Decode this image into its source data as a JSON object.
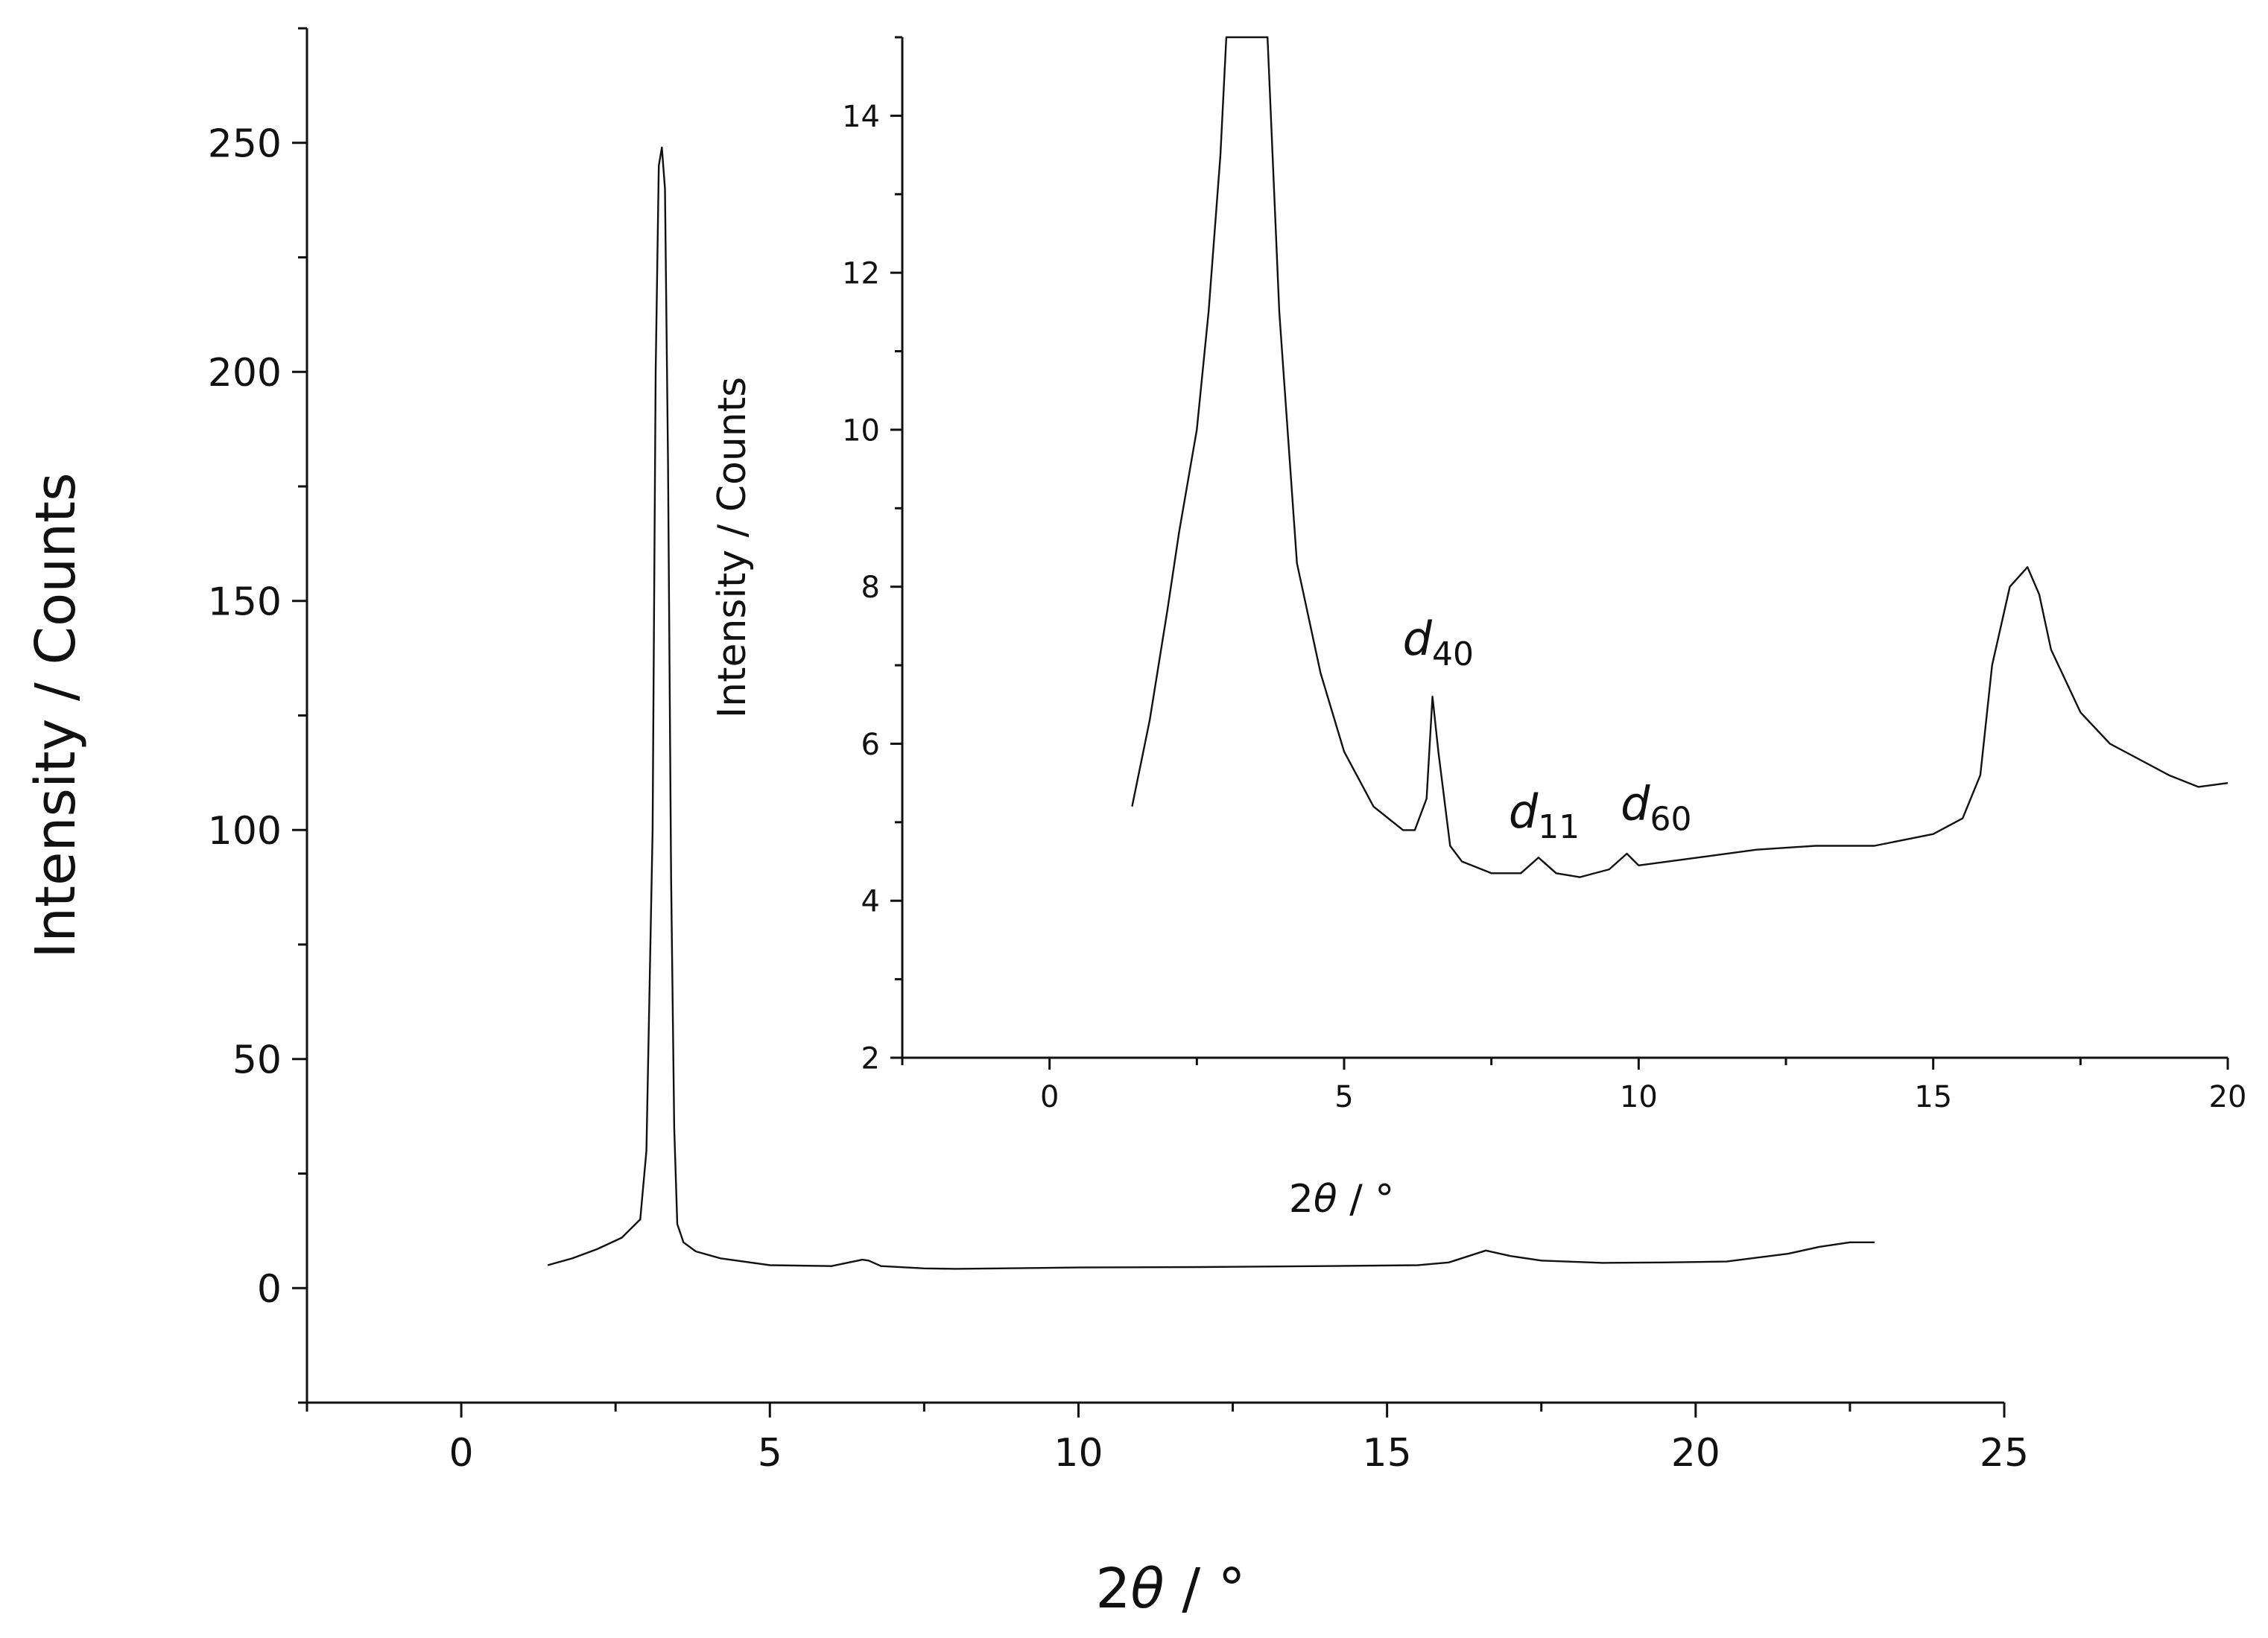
{
  "chart_data": [
    {
      "type": "line",
      "xlabel": "2θ / °",
      "ylabel": "Intensity / Counts",
      "xlim": [
        -2.5,
        25
      ],
      "ylim": [
        -25,
        275
      ],
      "xticks": [
        0,
        5,
        10,
        15,
        20,
        25
      ],
      "yticks": [
        0,
        50,
        100,
        150,
        200,
        250
      ],
      "xtick_labels": [
        "0",
        "5",
        "10",
        "15",
        "20",
        "25"
      ],
      "ytick_labels": [
        "0",
        "50",
        "100",
        "150",
        "200",
        "250"
      ],
      "grid": false,
      "series": [
        {
          "x": [
            1.4,
            1.8,
            2.2,
            2.6,
            2.9,
            3.0,
            3.1,
            3.15,
            3.2,
            3.25,
            3.3,
            3.35,
            3.4,
            3.45,
            3.5,
            3.6,
            3.8,
            4.2,
            5.0,
            6.0,
            6.5,
            6.6,
            6.8,
            7.5,
            8.0,
            10.0,
            12.0,
            14.0,
            15.5,
            16.0,
            16.6,
            17.0,
            17.5,
            18.5,
            19.5,
            20.5,
            21.5,
            22.0,
            22.5,
            22.9
          ],
          "y": [
            5,
            6.5,
            8.5,
            11,
            15,
            30,
            100,
            200,
            245,
            249,
            240,
            180,
            90,
            35,
            14,
            10,
            8,
            6.5,
            5,
            4.8,
            6.2,
            6.0,
            4.8,
            4.3,
            4.2,
            4.5,
            4.6,
            4.8,
            5.0,
            5.6,
            8.2,
            7.0,
            6.0,
            5.5,
            5.6,
            5.8,
            7.5,
            9.0,
            10.0,
            10.0
          ]
        }
      ]
    },
    {
      "type": "line",
      "inset": true,
      "xlabel": "2θ / °",
      "ylabel": "Intensity / Counts",
      "xlim": [
        -2.5,
        20
      ],
      "ylim": [
        2,
        15
      ],
      "xticks": [
        0,
        5,
        10,
        15,
        20
      ],
      "yticks": [
        2,
        4,
        6,
        8,
        10,
        12,
        14
      ],
      "xtick_labels": [
        "0",
        "5",
        "10",
        "15",
        "20"
      ],
      "ytick_labels": [
        "2",
        "4",
        "6",
        "8",
        "10",
        "12",
        "14"
      ],
      "grid": false,
      "series": [
        {
          "x": [
            1.4,
            1.7,
            2.0,
            2.2,
            2.5,
            2.7,
            2.9,
            3.0,
            3.7,
            3.9,
            4.2,
            4.6,
            5.0,
            5.5,
            6.0,
            6.2,
            6.4,
            6.5,
            6.6,
            6.8,
            7.0,
            7.5,
            8.0,
            8.3,
            8.6,
            9.0,
            9.5,
            9.8,
            10.0,
            11.0,
            12.0,
            13.0,
            14.0,
            15.0,
            15.5,
            15.8,
            16.0,
            16.3,
            16.6,
            16.8,
            17.0,
            17.5,
            18.0,
            18.5,
            19.0,
            19.5,
            20.0
          ],
          "y": [
            5.2,
            6.3,
            7.7,
            8.7,
            10.0,
            11.5,
            13.5,
            15.0,
            15.0,
            11.5,
            8.3,
            6.9,
            5.9,
            5.2,
            4.9,
            4.9,
            5.3,
            6.6,
            5.9,
            4.7,
            4.5,
            4.35,
            4.35,
            4.55,
            4.35,
            4.3,
            4.4,
            4.6,
            4.45,
            4.55,
            4.65,
            4.7,
            4.7,
            4.85,
            5.05,
            5.6,
            7.0,
            8.0,
            8.25,
            7.9,
            7.2,
            6.4,
            6.0,
            5.8,
            5.6,
            5.45,
            5.5
          ]
        }
      ]
    }
  ],
  "annotations": [
    {
      "main": "d",
      "sub": "40",
      "x": 6.5,
      "y": 7.0
    },
    {
      "main": "d",
      "sub": "11",
      "x": 8.3,
      "y": 4.8
    },
    {
      "main": "d",
      "sub": "60",
      "x": 10.2,
      "y": 4.9
    }
  ]
}
